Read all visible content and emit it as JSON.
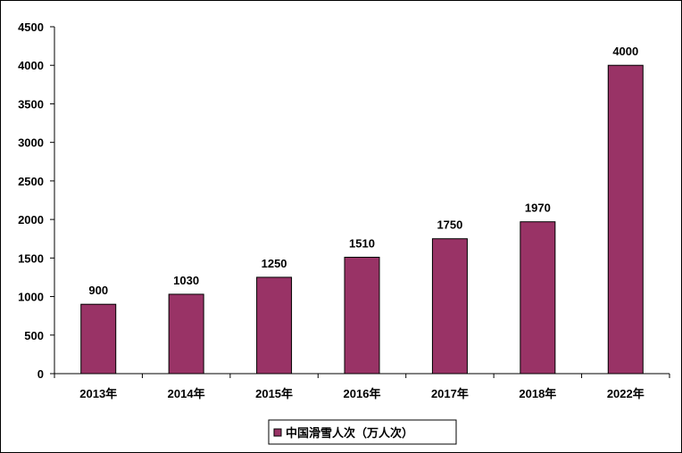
{
  "chart_data": {
    "type": "bar",
    "categories": [
      "2013年",
      "2014年",
      "2015年",
      "2016年",
      "2017年",
      "2018年",
      "2022年"
    ],
    "series": [
      {
        "name": "中国滑雪人次（万人次）",
        "values": [
          900,
          1030,
          1250,
          1510,
          1750,
          1970,
          4000
        ],
        "color": "#993366"
      }
    ],
    "ylim": [
      0,
      4500
    ],
    "yticks": [
      0,
      500,
      1000,
      1500,
      2000,
      2500,
      3000,
      3500,
      4000,
      4500
    ],
    "grid": false,
    "data_labels": true,
    "legend_position": "bottom"
  }
}
